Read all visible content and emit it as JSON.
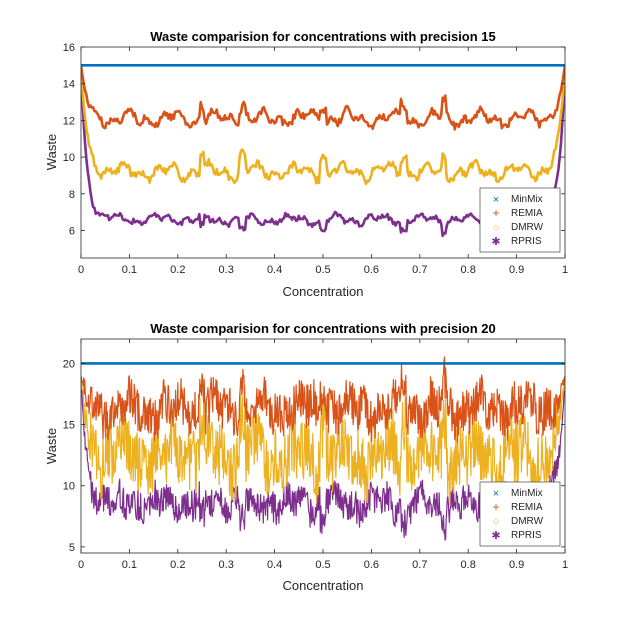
{
  "chart_data": [
    {
      "type": "line",
      "title": "Waste comparision for concentrations with precision 15",
      "xlabel": "Concentration",
      "ylabel": "Waste",
      "xlim": [
        0,
        1
      ],
      "ylim": [
        4.5,
        16
      ],
      "xticks": [
        0,
        0.1,
        0.2,
        0.3,
        0.4,
        0.5,
        0.6,
        0.7,
        0.8,
        0.9,
        1
      ],
      "xtick_labels": [
        "0",
        "0.1",
        "0.2",
        "0.3",
        "0.4",
        "0.5",
        "0.6",
        "0.7",
        "0.8",
        "0.9",
        "1"
      ],
      "yticks": [
        6,
        8,
        10,
        12,
        14,
        16
      ],
      "ytick_labels": [
        "6",
        "8",
        "10",
        "12",
        "14",
        "16"
      ],
      "legend_position": "bottom-right",
      "series": [
        {
          "name": "MinMix",
          "marker": "×",
          "color": "#0072BD",
          "level": 15,
          "edge": 15,
          "variation": 0
        },
        {
          "name": "REMIA",
          "marker": "+",
          "color": "#D95319",
          "level": 12.1,
          "edge": 15,
          "variation": 0.8
        },
        {
          "name": "DMRW",
          "marker": "○",
          "color": "#EDB120",
          "level": 9.2,
          "edge": 15,
          "variation": 0.8
        },
        {
          "name": "RPRIS",
          "marker": "✱",
          "color": "#7E2F8E",
          "level": 6.6,
          "edge": 15,
          "variation": 0.5
        }
      ]
    },
    {
      "type": "line",
      "title": "Waste comparision for concentrations with precision 20",
      "xlabel": "Concentration",
      "ylabel": "Waste",
      "xlim": [
        0,
        1
      ],
      "ylim": [
        4.5,
        22
      ],
      "xticks": [
        0,
        0.1,
        0.2,
        0.3,
        0.4,
        0.5,
        0.6,
        0.7,
        0.8,
        0.9,
        1
      ],
      "xtick_labels": [
        "0",
        "0.1",
        "0.2",
        "0.3",
        "0.4",
        "0.5",
        "0.6",
        "0.7",
        "0.8",
        "0.9",
        "1"
      ],
      "yticks": [
        5,
        10,
        15,
        20
      ],
      "ytick_labels": [
        "5",
        "10",
        "15",
        "20"
      ],
      "legend_position": "bottom-right",
      "series": [
        {
          "name": "MinMix",
          "marker": "×",
          "color": "#0072BD",
          "level": 20,
          "edge": 20,
          "variation": 0
        },
        {
          "name": "REMIA",
          "marker": "+",
          "color": "#D95319",
          "level": 16.3,
          "edge": 19,
          "variation": 1.8
        },
        {
          "name": "DMRW",
          "marker": "○",
          "color": "#EDB120",
          "level": 12.5,
          "edge": 19,
          "variation": 2.6
        },
        {
          "name": "RPRIS",
          "marker": "✱",
          "color": "#7E2F8E",
          "level": 8.6,
          "edge": 19,
          "variation": 1.3
        }
      ]
    }
  ]
}
